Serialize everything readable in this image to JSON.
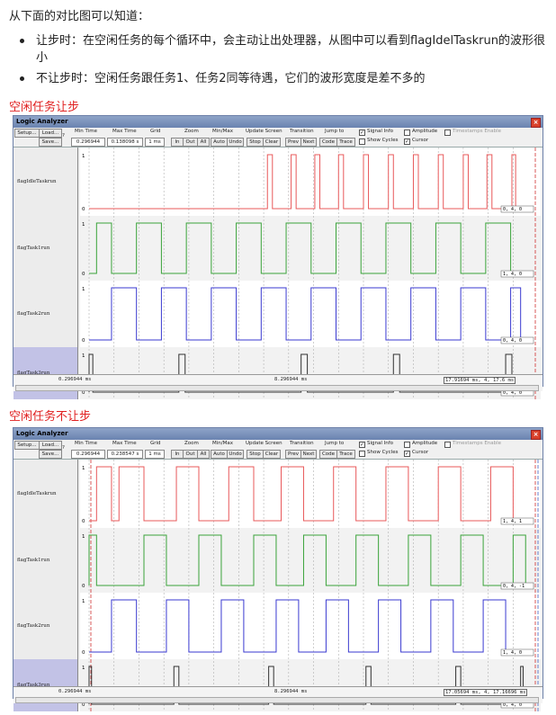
{
  "intro": "从下面的对比图可以知道：",
  "bullets": [
    "让步时：在空闲任务的每个循环中，会主动让出处理器，从图中可以看到flagIdelTaskrun的波形很小",
    "不让步时：空闲任务跟任务1、任务2同等待遇，它们的波形宽度是差不多的"
  ],
  "panels": [
    {
      "heading": "空闲任务让步",
      "window_title": "Logic Analyzer",
      "close_label": "×",
      "setup_label": "Setup...",
      "load_label": "Load...",
      "save_label": "Save...",
      "help_label": "?",
      "min_time_label": "Min Time",
      "min_time_value": "0.296944 ms",
      "max_time_label": "Max Time",
      "max_time_value": "0.138098 s",
      "grid_label": "Grid",
      "grid_value": "1 ms",
      "zoom_label": "Zoom",
      "zoom_in": "In",
      "zoom_out": "Out",
      "zoom_all": "All",
      "minmax_label": "Min/Max",
      "auto_label": "Auto",
      "undo_label": "Undo",
      "update_label": "Update Screen",
      "stop_label": "Stop",
      "clear_label": "Clear",
      "transition_label": "Transition",
      "prev_label": "Prev",
      "next_label": "Next",
      "jump_label": "Jump to",
      "code_label": "Code",
      "trace_label": "Trace",
      "signal_info": "Signal Info",
      "show_cycles": "Show Cycles",
      "amplitude": "Amplitude",
      "cursor": "Cursor",
      "timestamps": "Timestamps Enable",
      "signals": [
        "flagIdleTaskrun",
        "flagTask1run",
        "flagTask2run",
        "flagTask3run"
      ],
      "axis_high": "1",
      "axis_low": "0",
      "value_boxes": [
        "0,  4,  0",
        "1,  4,  0",
        "0,  4,  0",
        "0,  4,  0"
      ],
      "status_left": "0.296944 ms",
      "status_mid": "8.296944 ms",
      "status_right": "17.91694 ms,  4,  17.6 ms"
    },
    {
      "heading": "空闲任务不让步",
      "window_title": "Logic Analyzer",
      "close_label": "×",
      "setup_label": "Setup...",
      "load_label": "Load...",
      "save_label": "Save...",
      "help_label": "?",
      "min_time_label": "Min Time",
      "min_time_value": "0.296944 ms",
      "max_time_label": "Max Time",
      "max_time_value": "0.238547 s",
      "grid_label": "Grid",
      "grid_value": "1 ms",
      "zoom_label": "Zoom",
      "zoom_in": "In",
      "zoom_out": "Out",
      "zoom_all": "All",
      "minmax_label": "Min/Max",
      "auto_label": "Auto",
      "undo_label": "Undo",
      "update_label": "Update Screen",
      "stop_label": "Stop",
      "clear_label": "Clear",
      "transition_label": "Transition",
      "prev_label": "Prev",
      "next_label": "Next",
      "jump_label": "Jump to",
      "code_label": "Code",
      "trace_label": "Trace",
      "signal_info": "Signal Info",
      "show_cycles": "Show Cycles",
      "amplitude": "Amplitude",
      "cursor": "Cursor",
      "timestamps": "Timestamps Enable",
      "signals": [
        "flagIdleTaskrun",
        "flagTask1run",
        "flagTask2run",
        "flagTask3run"
      ],
      "axis_high": "1",
      "axis_low": "0",
      "value_boxes": [
        "1,  4,  1",
        "0,  4,  -1",
        "1,  4,  0",
        "0,  4,  0"
      ],
      "status_left": "0.296944 ms",
      "status_mid": "8.296944 ms",
      "status_right": "17.05694 ms,  4,  17.16696 ms"
    }
  ],
  "colors": {
    "idle": "#e8585a",
    "task1": "#3aa33a",
    "task2": "#3a3ad0",
    "task3": "#303030",
    "cursor": "#d03030",
    "cursor2": "#4060c0"
  },
  "waveforms": {
    "yield": {
      "span_ms": 17.6,
      "idle_pulses_ms": [
        [
          7.15,
          7.35
        ],
        [
          8.1,
          8.3
        ],
        [
          9.05,
          9.25
        ],
        [
          10.0,
          10.2
        ],
        [
          11.0,
          11.2
        ],
        [
          12.0,
          12.2
        ],
        [
          13.0,
          13.2
        ],
        [
          14.0,
          14.2
        ],
        [
          15.0,
          15.2
        ],
        [
          15.95,
          16.15
        ],
        [
          16.95,
          17.1
        ]
      ],
      "task1_pulses_ms": [
        [
          0.3,
          0.9
        ],
        [
          1.9,
          2.9
        ],
        [
          3.9,
          4.9
        ],
        [
          5.9,
          6.9
        ],
        [
          7.9,
          8.9
        ],
        [
          9.9,
          10.9
        ],
        [
          11.9,
          12.9
        ],
        [
          13.9,
          14.9
        ],
        [
          15.9,
          16.9
        ]
      ],
      "task2_pulses_ms": [
        [
          0.9,
          1.9
        ],
        [
          2.9,
          3.9
        ],
        [
          4.9,
          5.9
        ],
        [
          6.9,
          7.9
        ],
        [
          8.9,
          9.9
        ],
        [
          10.9,
          11.9
        ],
        [
          12.9,
          13.9
        ],
        [
          14.9,
          15.9
        ],
        [
          16.9,
          17.3
        ]
      ],
      "task3_pulses_ms": [
        [
          0.0,
          0.15
        ],
        [
          3.6,
          3.85
        ],
        [
          8.5,
          8.75
        ],
        [
          12.2,
          12.45
        ],
        [
          16.7,
          16.95
        ]
      ]
    },
    "noyield": {
      "span_ms": 17.6,
      "idle_pulses_ms": [
        [
          0.3,
          0.9
        ],
        [
          1.2,
          2.2
        ],
        [
          3.5,
          4.4
        ],
        [
          5.6,
          6.6
        ],
        [
          7.7,
          8.6
        ],
        [
          9.8,
          10.7
        ],
        [
          11.9,
          12.8
        ],
        [
          14.0,
          14.9
        ],
        [
          16.1,
          17.0
        ]
      ],
      "task1_pulses_ms": [
        [
          0.0,
          0.3
        ],
        [
          2.2,
          3.1
        ],
        [
          4.4,
          5.3
        ],
        [
          6.6,
          7.5
        ],
        [
          8.6,
          9.5
        ],
        [
          10.7,
          11.6
        ],
        [
          12.8,
          13.7
        ],
        [
          14.9,
          15.8
        ],
        [
          17.0,
          17.5
        ]
      ],
      "task2_pulses_ms": [
        [
          0.9,
          1.9
        ],
        [
          3.1,
          4.0
        ],
        [
          5.3,
          6.2
        ],
        [
          7.5,
          8.4
        ],
        [
          9.5,
          10.4
        ],
        [
          11.6,
          12.5
        ],
        [
          13.7,
          14.6
        ],
        [
          15.8,
          16.7
        ]
      ],
      "task3_pulses_ms": [
        [
          0.0,
          0.1
        ],
        [
          3.4,
          3.6
        ],
        [
          7.2,
          7.4
        ],
        [
          11.1,
          11.3
        ],
        [
          14.7,
          14.9
        ],
        [
          17.3,
          17.4
        ]
      ]
    }
  }
}
